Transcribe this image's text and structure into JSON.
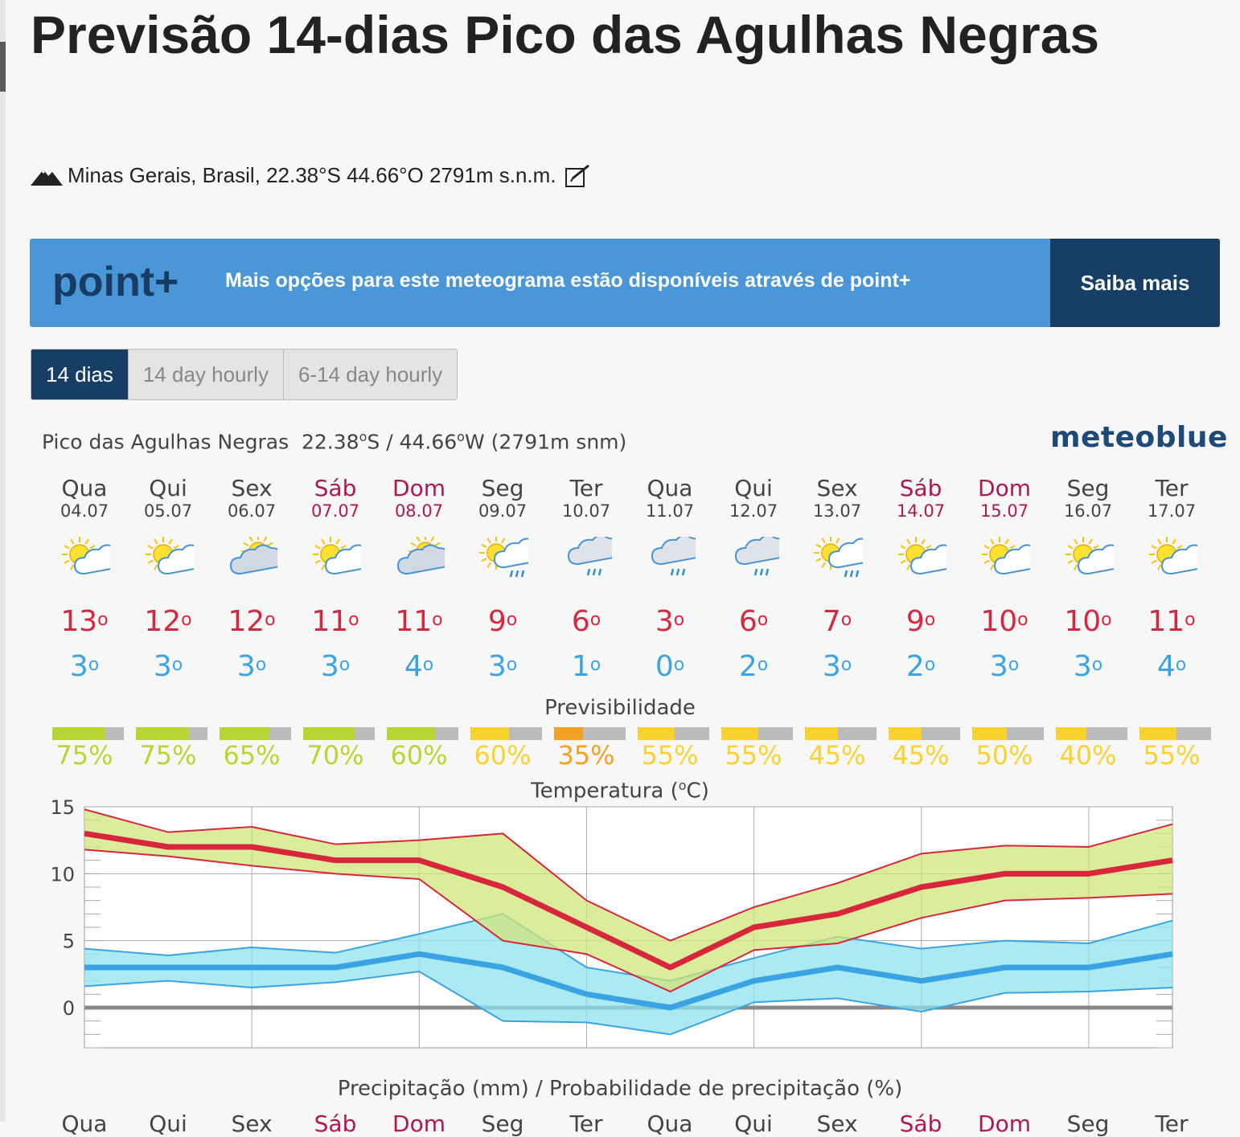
{
  "title": "Previsão 14-dias Pico das Agulhas Negras",
  "location_line": "Minas Gerais, Brasil, 22.38°S 44.66°O 2791m s.n.m.",
  "banner": {
    "brand": "point+",
    "message": "Mais opções para este meteograma estão disponíveis através de point+",
    "button": "Saiba mais"
  },
  "tabs": [
    "14 dias",
    "14 day hourly",
    "6-14 day hourly"
  ],
  "meteogram": {
    "place": "Pico das Agulhas Negras",
    "lat": "22.38",
    "lat_dir": "S",
    "lon": "44.66",
    "lon_dir": "W (2791m snm)",
    "sep": "/",
    "deg_symbol": "o",
    "brand": "meteoblue",
    "predictability_title": "Previsibilidade",
    "temperature_title_pre": "Temperatura (",
    "temperature_title_unit": "C)",
    "precip_title": "Precipitação (mm) / Probabilidade de precipitação (%)"
  },
  "colors": {
    "max_temp": "#d8263d",
    "min_temp": "#3aa4e3",
    "weekend": "#b0194f",
    "green": "#b7d634",
    "yellow": "#f9d230",
    "orange": "#f3a122",
    "banner": "#4a96d6",
    "banner_button": "#173f66"
  },
  "days": [
    {
      "name": "Qua",
      "date": "04.07",
      "weekend": false,
      "icon": "sun-cloud-icon",
      "max": "13",
      "min": "3",
      "pred": 75,
      "pred_label": "75%",
      "pred_color": "green"
    },
    {
      "name": "Qui",
      "date": "05.07",
      "weekend": false,
      "icon": "sun-cloud-icon",
      "max": "12",
      "min": "3",
      "pred": 75,
      "pred_label": "75%",
      "pred_color": "green"
    },
    {
      "name": "Sex",
      "date": "06.07",
      "weekend": false,
      "icon": "cloud-sun-icon",
      "max": "12",
      "min": "3",
      "pred": 65,
      "pred_label": "65%",
      "pred_color": "green"
    },
    {
      "name": "Sáb",
      "date": "07.07",
      "weekend": true,
      "icon": "sun-cloud-icon",
      "max": "11",
      "min": "3",
      "pred": 70,
      "pred_label": "70%",
      "pred_color": "green"
    },
    {
      "name": "Dom",
      "date": "08.07",
      "weekend": true,
      "icon": "cloud-sun-icon",
      "max": "11",
      "min": "4",
      "pred": 60,
      "pred_label": "60%",
      "pred_color": "green"
    },
    {
      "name": "Seg",
      "date": "09.07",
      "weekend": false,
      "icon": "sun-rain-icon",
      "max": "9",
      "min": "3",
      "pred": 60,
      "pred_label": "60%",
      "pred_color": "yellow"
    },
    {
      "name": "Ter",
      "date": "10.07",
      "weekend": false,
      "icon": "rain-cloud-icon",
      "max": "6",
      "min": "1",
      "pred": 35,
      "pred_label": "35%",
      "pred_color": "orange"
    },
    {
      "name": "Qua",
      "date": "11.07",
      "weekend": false,
      "icon": "rain-cloud-icon",
      "max": "3",
      "min": "0",
      "pred": 55,
      "pred_label": "55%",
      "pred_color": "yellow"
    },
    {
      "name": "Qui",
      "date": "12.07",
      "weekend": false,
      "icon": "rain-cloud-icon",
      "max": "6",
      "min": "2",
      "pred": 55,
      "pred_label": "55%",
      "pred_color": "yellow"
    },
    {
      "name": "Sex",
      "date": "13.07",
      "weekend": false,
      "icon": "sun-rain-icon",
      "max": "7",
      "min": "3",
      "pred": 45,
      "pred_label": "45%",
      "pred_color": "yellow"
    },
    {
      "name": "Sáb",
      "date": "14.07",
      "weekend": true,
      "icon": "sun-cloud-icon",
      "max": "9",
      "min": "2",
      "pred": 45,
      "pred_label": "45%",
      "pred_color": "yellow"
    },
    {
      "name": "Dom",
      "date": "15.07",
      "weekend": true,
      "icon": "sun-cloud-icon",
      "max": "10",
      "min": "3",
      "pred": 50,
      "pred_label": "50%",
      "pred_color": "yellow"
    },
    {
      "name": "Seg",
      "date": "16.07",
      "weekend": false,
      "icon": "sun-cloud-icon",
      "max": "10",
      "min": "3",
      "pred": 40,
      "pred_label": "40%",
      "pred_color": "yellow"
    },
    {
      "name": "Ter",
      "date": "17.07",
      "weekend": false,
      "icon": "sun-cloud-icon",
      "max": "11",
      "min": "4",
      "pred": 55,
      "pred_label": "55%",
      "pred_color": "yellow"
    }
  ],
  "chart_data": {
    "type": "line",
    "title": "Temperatura (°C)",
    "ylim": [
      -3,
      15
    ],
    "yticks": [
      15,
      10,
      5,
      0
    ],
    "x": [
      "04.07",
      "05.07",
      "06.07",
      "07.07",
      "08.07",
      "09.07",
      "10.07",
      "11.07",
      "12.07",
      "13.07",
      "14.07",
      "15.07",
      "16.07",
      "17.07"
    ],
    "series": [
      {
        "name": "max",
        "values": [
          13,
          12,
          12,
          11,
          11,
          9,
          6,
          3,
          6,
          7,
          9,
          10,
          10,
          11
        ]
      },
      {
        "name": "max_upper",
        "values": [
          14.8,
          13.1,
          13.5,
          12.2,
          12.5,
          13,
          8,
          5,
          7.5,
          9.3,
          11.5,
          12.1,
          12,
          13.7
        ]
      },
      {
        "name": "max_lower",
        "values": [
          11.8,
          11.3,
          10.6,
          10,
          9.6,
          5,
          4,
          1.2,
          4.3,
          4.8,
          6.7,
          8,
          8.2,
          8.5
        ]
      },
      {
        "name": "min",
        "values": [
          3,
          3,
          3,
          3,
          4,
          3,
          1,
          0,
          2,
          3,
          2,
          3,
          3,
          4
        ]
      },
      {
        "name": "min_upper",
        "values": [
          4.4,
          3.9,
          4.5,
          4.1,
          5.5,
          7,
          3,
          2,
          3.7,
          5.3,
          4.4,
          5,
          4.8,
          6.5
        ]
      },
      {
        "name": "min_lower",
        "values": [
          1.6,
          2,
          1.5,
          1.9,
          2.7,
          -1,
          -1.1,
          -2,
          0.4,
          0.7,
          -0.3,
          1.1,
          1.2,
          1.5
        ]
      }
    ],
    "grid": true
  },
  "bottom_days": [
    "Qua",
    "Qui",
    "Sex",
    "Sáb",
    "Dom",
    "Seg",
    "Ter",
    "Qua",
    "Qui",
    "Sex",
    "Sáb",
    "Dom",
    "Seg",
    "Ter"
  ]
}
